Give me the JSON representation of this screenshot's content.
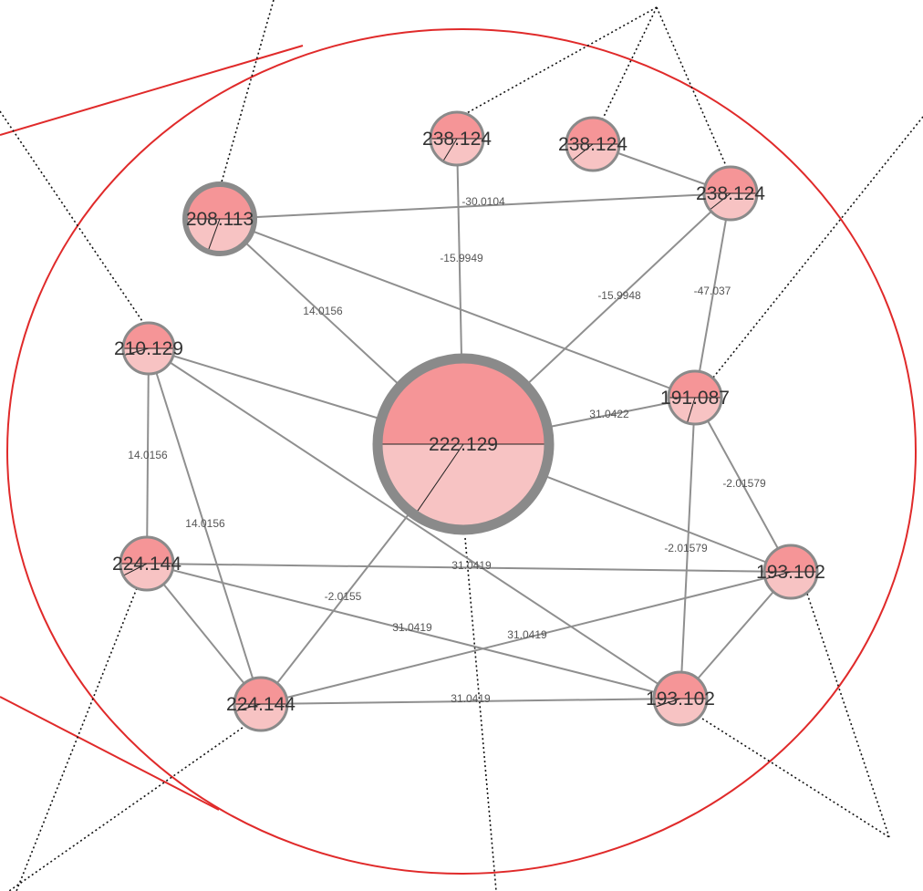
{
  "colors": {
    "node_top": "#f59597",
    "node_bottom": "#f7c3c3",
    "node_border": "#8a8a8a",
    "edge": "#8f8f8f",
    "outline": "#e02a2a",
    "guide": "#111111"
  },
  "nodes": [
    {
      "id": "n_center",
      "label": "222.129"
    },
    {
      "id": "n_208",
      "label": "208.113"
    },
    {
      "id": "n_238a",
      "label": "238.124"
    },
    {
      "id": "n_238b",
      "label": "238.124"
    },
    {
      "id": "n_238c",
      "label": "238.124"
    },
    {
      "id": "n_210",
      "label": "210.129"
    },
    {
      "id": "n_191",
      "label": "191.087"
    },
    {
      "id": "n_224a",
      "label": "224.144"
    },
    {
      "id": "n_193a",
      "label": "193.102"
    },
    {
      "id": "n_224b",
      "label": "224.144"
    },
    {
      "id": "n_193b",
      "label": "193.102"
    }
  ],
  "edges": [
    {
      "from": "n_208",
      "to": "n_238c",
      "label": "-30.0104"
    },
    {
      "from": "n_238a",
      "to": "n_center",
      "label": "-15.9949"
    },
    {
      "from": "n_238c",
      "to": "n_center",
      "label": "-15.9948"
    },
    {
      "from": "n_238c",
      "to": "n_191",
      "label": "-47.037"
    },
    {
      "from": "n_208",
      "to": "n_center",
      "label": "14.0156"
    },
    {
      "from": "n_center",
      "to": "n_191",
      "label": "31.0422"
    },
    {
      "from": "n_210",
      "to": "n_224a",
      "label": "14.0156"
    },
    {
      "from": "n_210",
      "to": "n_224b",
      "label": "14.0156"
    },
    {
      "from": "n_191",
      "to": "n_193a",
      "label": "-2.01579"
    },
    {
      "from": "n_191",
      "to": "n_193b",
      "label": "-2.01579"
    },
    {
      "from": "n_224a",
      "to": "n_193a",
      "label": "31.0419"
    },
    {
      "from": "n_224b",
      "to": "n_center",
      "label": "-2.0155"
    },
    {
      "from": "n_224a",
      "to": "n_193b",
      "label": "31.0419"
    },
    {
      "from": "n_224b",
      "to": "n_193a",
      "label": "31.0419"
    },
    {
      "from": "n_224b",
      "to": "n_193b",
      "label": "31.0419"
    },
    {
      "from": "n_238b",
      "to": "n_238c",
      "label": ""
    },
    {
      "from": "n_208",
      "to": "n_191",
      "label": ""
    },
    {
      "from": "n_210",
      "to": "n_center",
      "label": ""
    },
    {
      "from": "n_210",
      "to": "n_193b",
      "label": ""
    },
    {
      "from": "n_center",
      "to": "n_193a",
      "label": ""
    },
    {
      "from": "n_224a",
      "to": "n_224b",
      "label": ""
    },
    {
      "from": "n_193a",
      "to": "n_193b",
      "label": ""
    }
  ]
}
